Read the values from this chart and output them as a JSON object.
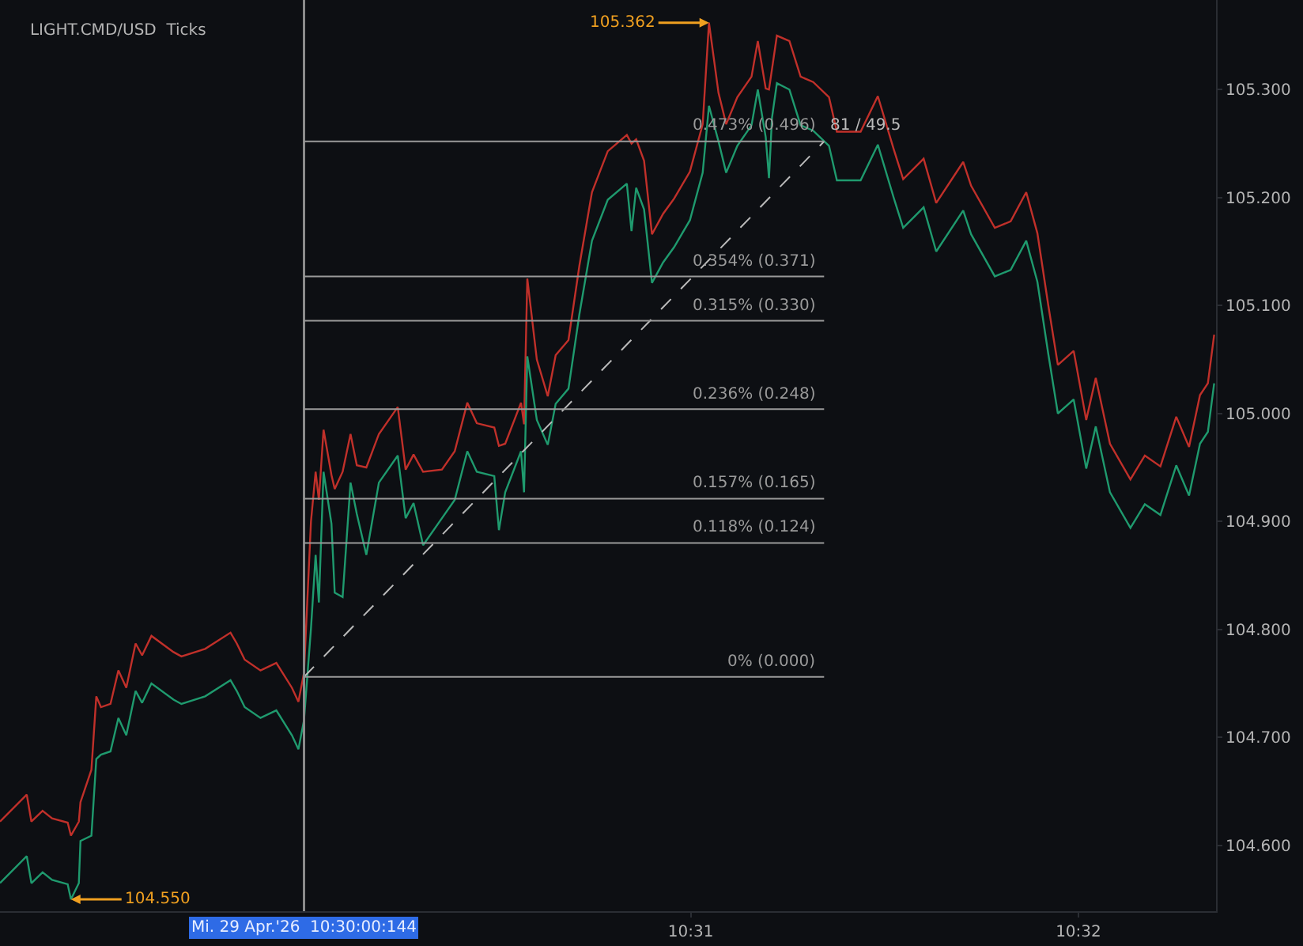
{
  "chart_data": {
    "type": "line",
    "title": "LIGHT.CMD/USD  Ticks",
    "x": [
      10.48697,
      10.48812,
      10.48832,
      10.4888,
      10.48921,
      10.48988,
      10.49002,
      10.49036,
      10.49043,
      10.4909,
      10.49111,
      10.49131,
      10.49172,
      10.49206,
      10.4924,
      10.4928,
      10.49308,
      10.49348,
      10.49443,
      10.49477,
      10.49579,
      10.49688,
      10.49715,
      10.49749,
      10.49817,
      10.49885,
      10.49952,
      10.4998,
      10.50004,
      10.50034,
      10.50054,
      10.50068,
      10.50088,
      10.50122,
      10.50136,
      10.5017,
      10.50204,
      10.50231,
      10.50272,
      10.50326,
      10.50407,
      10.50441,
      10.50475,
      10.50516,
      10.50597,
      10.50652,
      10.50706,
      10.50747,
      10.50822,
      10.50842,
      10.50869,
      10.50937,
      10.5095,
      10.50964,
      10.51005,
      10.51052,
      10.51086,
      10.51141,
      10.51188,
      10.51242,
      10.5131,
      10.51392,
      10.51412,
      10.51432,
      10.51466,
      10.515,
      10.51548,
      10.51595,
      10.51663,
      10.51718,
      10.51745,
      10.51786,
      10.51819,
      10.51867,
      10.51928,
      10.51955,
      10.51989,
      10.52003,
      10.52016,
      10.52037,
      10.52091,
      10.52139,
      10.52193,
      10.52261,
      10.52295,
      10.52397,
      10.52471,
      10.52539,
      10.5258,
      10.52668,
      10.52722,
      10.52838,
      10.52872,
      10.52974,
      10.53042,
      10.53109,
      10.53157,
      10.53204,
      10.53245,
      10.53313,
      10.53367,
      10.53408,
      10.53469,
      10.53557,
      10.53619,
      10.53686,
      10.53754,
      10.53809,
      10.53856,
      10.5389,
      10.53917
    ],
    "series": [
      {
        "color": "#c0302a",
        "values": [
          104.622,
          104.647,
          104.622,
          104.632,
          104.625,
          104.621,
          104.609,
          104.622,
          104.64,
          104.67,
          104.738,
          104.728,
          104.731,
          104.762,
          104.746,
          104.787,
          104.776,
          104.794,
          104.779,
          104.775,
          104.782,
          104.797,
          104.787,
          104.772,
          104.762,
          104.769,
          104.746,
          104.733,
          104.76,
          104.9,
          104.946,
          104.92,
          104.985,
          104.943,
          104.93,
          104.946,
          104.981,
          104.952,
          104.95,
          104.981,
          105.006,
          104.948,
          104.962,
          104.946,
          104.948,
          104.965,
          105.01,
          104.991,
          104.987,
          104.97,
          104.972,
          105.01,
          104.99,
          105.125,
          105.05,
          105.016,
          105.054,
          105.068,
          105.137,
          105.205,
          105.243,
          105.258,
          105.25,
          105.254,
          105.234,
          105.166,
          105.185,
          105.199,
          105.224,
          105.268,
          105.362,
          105.297,
          105.268,
          105.293,
          105.312,
          105.345,
          105.301,
          105.3,
          105.319,
          105.35,
          105.345,
          105.312,
          105.307,
          105.293,
          105.261,
          105.261,
          105.294,
          105.245,
          105.217,
          105.236,
          105.195,
          105.233,
          105.211,
          105.172,
          105.178,
          105.205,
          105.167,
          105.1,
          105.045,
          105.058,
          104.994,
          105.033,
          104.972,
          104.939,
          104.961,
          104.951,
          104.997,
          104.969,
          105.017,
          105.028,
          105.073
        ]
      },
      {
        "color": "#1f9a6e",
        "values": [
          104.565,
          104.59,
          104.565,
          104.575,
          104.568,
          104.564,
          104.55,
          104.565,
          104.604,
          104.609,
          104.68,
          104.684,
          104.687,
          104.718,
          104.702,
          104.743,
          104.732,
          104.75,
          104.735,
          104.731,
          104.738,
          104.753,
          104.743,
          104.728,
          104.718,
          104.725,
          104.702,
          104.689,
          104.716,
          104.801,
          104.869,
          104.825,
          104.946,
          104.898,
          104.834,
          104.83,
          104.936,
          104.907,
          104.869,
          104.936,
          104.961,
          104.903,
          104.917,
          104.878,
          104.903,
          104.92,
          104.965,
          104.946,
          104.942,
          104.892,
          104.927,
          104.965,
          104.927,
          105.053,
          104.994,
          104.971,
          105.009,
          105.023,
          105.092,
          105.16,
          105.198,
          105.213,
          105.169,
          105.209,
          105.189,
          105.121,
          105.14,
          105.154,
          105.179,
          105.223,
          105.285,
          105.252,
          105.223,
          105.248,
          105.267,
          105.3,
          105.256,
          105.218,
          105.274,
          105.306,
          105.3,
          105.267,
          105.262,
          105.248,
          105.216,
          105.216,
          105.249,
          105.2,
          105.172,
          105.191,
          105.15,
          105.188,
          105.166,
          105.127,
          105.133,
          105.16,
          105.122,
          105.055,
          105.0,
          105.013,
          104.949,
          104.988,
          104.927,
          104.894,
          104.916,
          104.906,
          104.952,
          104.924,
          104.972,
          104.983,
          105.028
        ]
      },
      {
        "name": "81 / 49.5",
        "color": "#bbbbbb",
        "line_style": "dashed",
        "x": [
          10.50004,
          10.5224
        ],
        "values": [
          104.756,
          105.252
        ]
      }
    ],
    "xlim": [
      10.48697,
      10.53925
    ],
    "xticks": [
      {
        "value": 10.516667,
        "label": "10:31"
      },
      {
        "value": 10.533333,
        "label": "10:32"
      }
    ],
    "ylim": [
      104.539,
      105.383
    ],
    "yticks": [
      {
        "value": 104.6,
        "label": "104.600"
      },
      {
        "value": 104.7,
        "label": "104.700"
      },
      {
        "value": 104.8,
        "label": "104.800"
      },
      {
        "value": 104.9,
        "label": "104.900"
      },
      {
        "value": 105.0,
        "label": "105.000"
      },
      {
        "value": 105.1,
        "label": "105.100"
      },
      {
        "value": 105.2,
        "label": "105.200"
      },
      {
        "value": 105.3,
        "label": "105.300"
      }
    ],
    "ref_lines": [
      {
        "axis": "x",
        "value": 10.50004,
        "color": "#8a8a8a"
      },
      {
        "axis": "y",
        "value": 104.756,
        "color": "#9a9a9a"
      },
      {
        "axis": "y",
        "value": 104.88,
        "color": "#9a9a9a"
      },
      {
        "axis": "y",
        "value": 104.921,
        "color": "#9a9a9a"
      },
      {
        "axis": "y",
        "value": 105.004,
        "color": "#9a9a9a"
      },
      {
        "axis": "y",
        "value": 105.086,
        "color": "#9a9a9a"
      },
      {
        "axis": "y",
        "value": 105.127,
        "color": "#9a9a9a"
      },
      {
        "axis": "y",
        "value": 105.252,
        "color": "#9a9a9a"
      }
    ],
    "annotations": [
      "Mi. 29 Apr.'26  10:30:00:144",
      {
        "text": "0% (0.000)",
        "x": 10.5224,
        "y": 104.756
      },
      {
        "text": "0.118% (0.124)",
        "x": 10.5224,
        "y": 104.88
      },
      {
        "text": "0.157% (0.165)",
        "x": 10.5224,
        "y": 104.921
      },
      {
        "text": "0.236% (0.248)",
        "x": 10.5224,
        "y": 105.004
      },
      {
        "text": "0.315% (0.330)",
        "x": 10.5224,
        "y": 105.086
      },
      {
        "text": "0.354% (0.371)",
        "x": 10.5224,
        "y": 105.127
      },
      {
        "text": "0.473% (0.496)",
        "x": 10.5224,
        "y": 105.252
      },
      {
        "text": "105.362",
        "x": 10.51745,
        "y": 105.362
      },
      {
        "text": "104.550",
        "x": 10.49002,
        "y": 104.55
      }
    ],
    "legend": false,
    "grid": false,
    "marker": "none",
    "line_style": "solid"
  }
}
